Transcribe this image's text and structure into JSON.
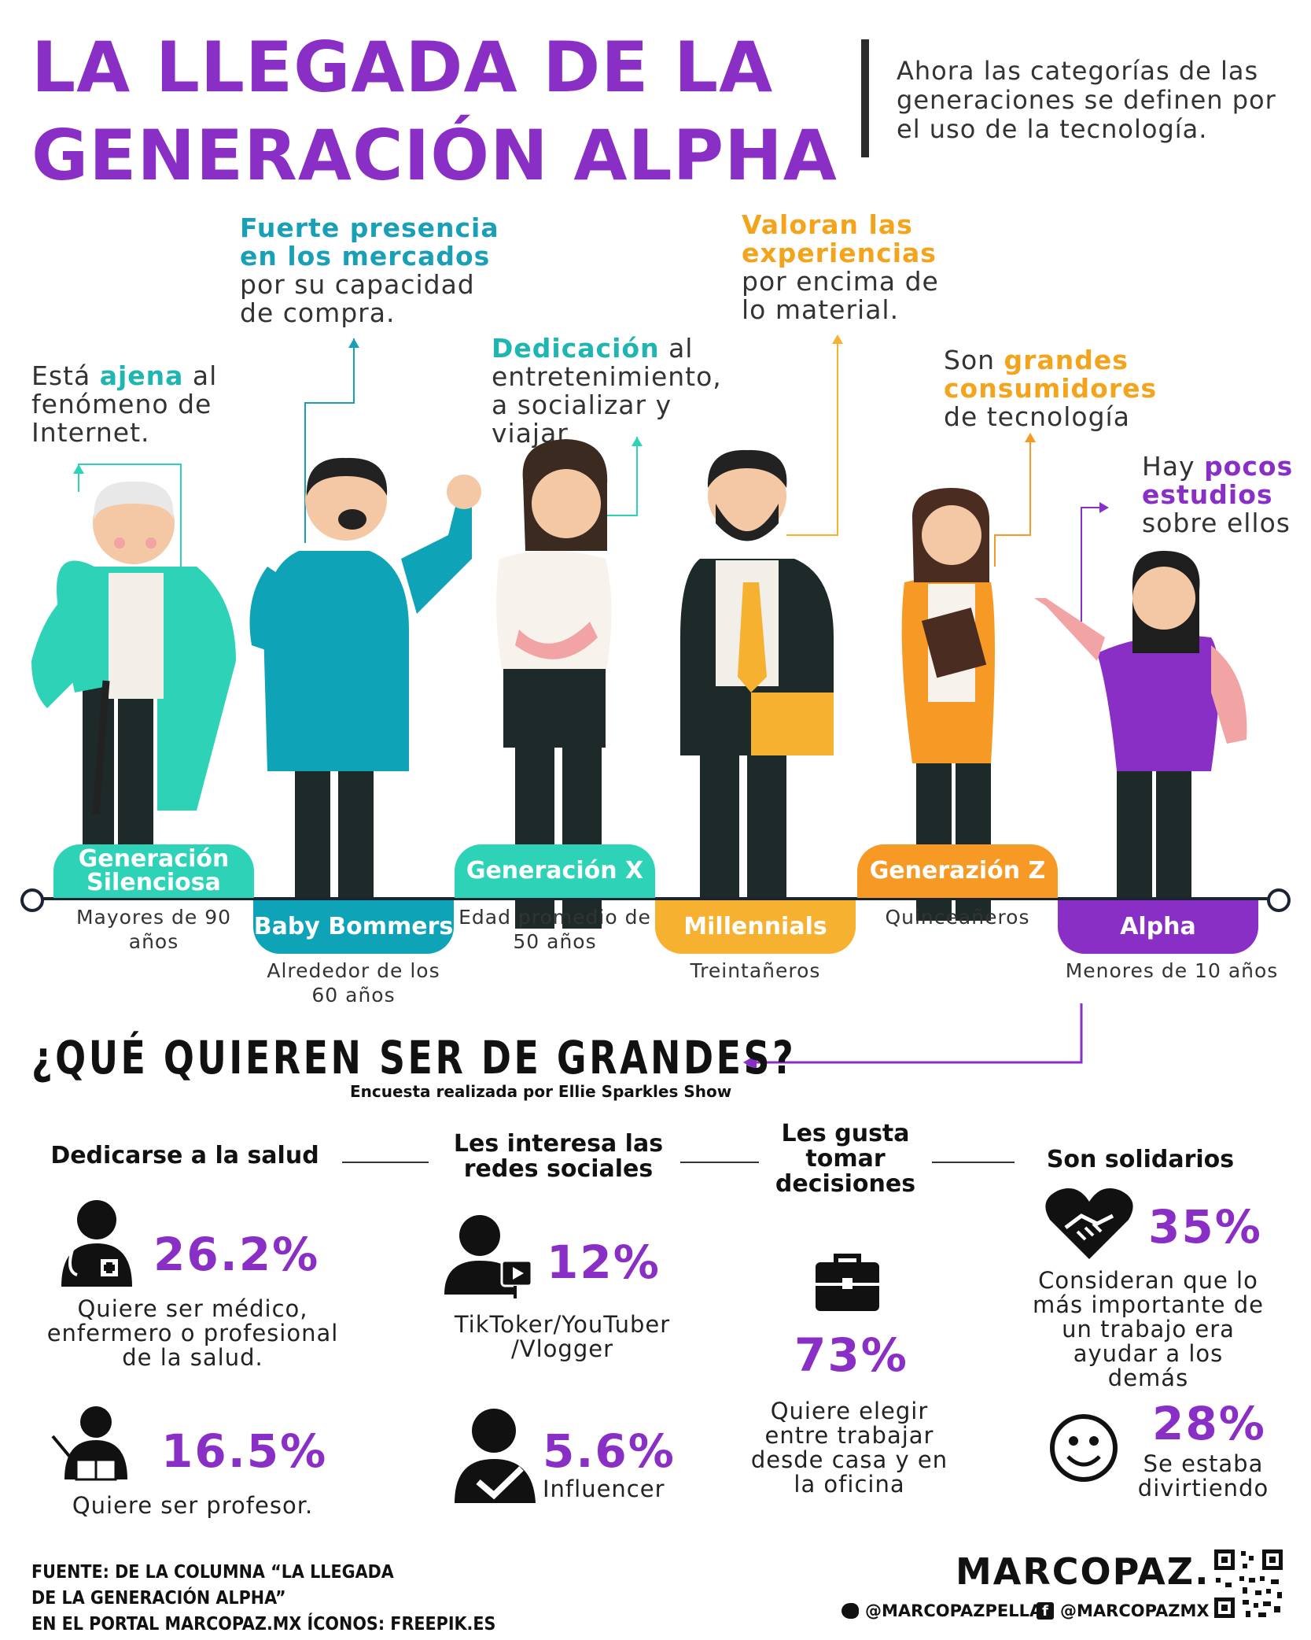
{
  "header": {
    "title_line1": "LA LLEGADA DE LA",
    "title_line2": "GENERACIÓN ALPHA",
    "subtitle": "Ahora las categorías de las generaciones se definen por el uso de la tecnología."
  },
  "notes": {
    "silenciosa": {
      "pre": "Está ",
      "highlight": "ajena",
      "post": " al fenómeno de Internet."
    },
    "boomers": {
      "highlight": "Fuerte presencia en los mercados",
      "post": " por su capacidad de compra."
    },
    "genx": {
      "highlight": "Dedicación",
      "post": " al entretenimiento, a socializar y viajar"
    },
    "millennials": {
      "highlight": "Valoran las experiencias",
      "post": " por encima de lo material."
    },
    "genz": {
      "pre": "Son ",
      "highlight": "grandes consumidores",
      "post": " de tecnología"
    },
    "alpha": {
      "pre": "Hay ",
      "highlight": "pocos estudios",
      "post": " sobre ellos"
    }
  },
  "generations": [
    {
      "label": "Generación Silenciosa",
      "sub": "Mayores de 90 años",
      "color": "#2ed3b7"
    },
    {
      "label": "Baby Bommers",
      "sub": "Alrededor de los 60 años",
      "color": "#0fa3b8"
    },
    {
      "label": "Generación X",
      "sub": "Edad promedio de 50 años",
      "color": "#2ed3b7"
    },
    {
      "label": "Millennials",
      "sub": "Treintañeros",
      "color": "#f5b12f"
    },
    {
      "label": "Generazión Z",
      "sub": "Quinceañeros",
      "color": "#f79a25"
    },
    {
      "label": "Alpha",
      "sub": "Menores de 10 años",
      "color": "#8a2fc6"
    }
  ],
  "survey": {
    "title": "¿QUÉ QUIEREN SER DE GRANDES?",
    "subtitle": "Encuesta realizada por Ellie Sparkles Show",
    "columns": [
      {
        "heading": "Dedicarse a la salud",
        "items": [
          {
            "icon": "doctor-icon",
            "pct": "26.2%",
            "desc": "Quiere ser médico, enfermero o profesional de la salud."
          },
          {
            "icon": "teacher-icon",
            "pct": "16.5%",
            "desc": "Quiere ser profesor."
          }
        ]
      },
      {
        "heading": "Les interesa las redes sociales",
        "items": [
          {
            "icon": "video-creator-icon",
            "pct": "12%",
            "desc": "TikToker/YouTuber /Vlogger"
          },
          {
            "icon": "verified-user-icon",
            "pct": "5.6%",
            "desc": "Influencer"
          }
        ]
      },
      {
        "heading": "Les gusta tomar decisiones",
        "items": [
          {
            "icon": "briefcase-icon",
            "pct": "73%",
            "desc": "Quiere elegir entre trabajar desde casa y en la oficina"
          }
        ]
      },
      {
        "heading": "Son solidarios",
        "items": [
          {
            "icon": "handshake-heart-icon",
            "pct": "35%",
            "desc": "Consideran que lo más importante de un trabajo era ayudar a los demás"
          },
          {
            "icon": "smiley-icon",
            "pct": "28%",
            "desc": "Se estaba divirtiendo"
          }
        ]
      }
    ]
  },
  "footer": {
    "source_line1": "FUENTE: DE LA COLUMNA “LA LLEGADA",
    "source_line2": "DE LA GENERACIÓN ALPHA”",
    "source_line3": "EN EL PORTAL MARCOPAZ.MX   ÍCONOS: FREEPIK.ES",
    "brand": "MARCOPAZ.MX",
    "twitter": "@MARCOPAZPELLAT",
    "facebook": "@MARCOPAZMX"
  },
  "colors": {
    "purple": "#8a2fc6",
    "teal": "#2ed3b7",
    "cyan": "#0fa3b8",
    "yellow": "#f5b12f",
    "orange": "#f79a25",
    "dark": "#1b2433"
  }
}
